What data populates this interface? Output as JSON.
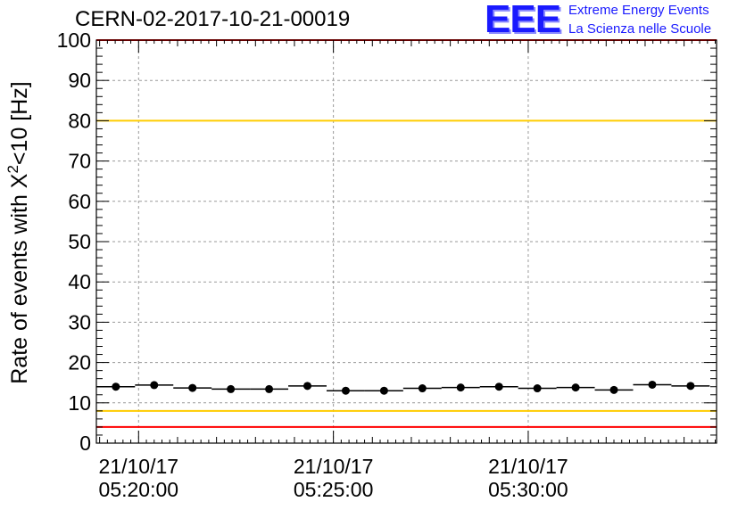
{
  "header": {
    "title": "CERN-02-2017-10-21-00019",
    "logo_mark": "EEE",
    "logo_line1": "Extreme Energy Events",
    "logo_line2": "La Scienza nelle Scuole"
  },
  "colors": {
    "data": "#000000",
    "limit_red": "#ff0000",
    "limit_yellow": "#ffcc00",
    "logo": "#1a1aff"
  },
  "chart_data": {
    "type": "scatter",
    "title": "CERN-02-2017-10-21-00019",
    "ylabel": "Rate of events with X",
    "ylabel_sup": "2",
    "ylabel_tail": "<10 [Hz]",
    "ylim": [
      0,
      100
    ],
    "yticks": [
      0,
      10,
      20,
      30,
      40,
      50,
      60,
      70,
      80,
      90,
      100
    ],
    "xlim": [
      "05:18:55",
      "05:34:50"
    ],
    "xticks": [
      {
        "time": "05:20:00",
        "date": "21/10/17",
        "label": "05:20:00"
      },
      {
        "time": "05:25:00",
        "date": "21/10/17",
        "label": "05:25:00"
      },
      {
        "time": "05:30:00",
        "date": "21/10/17",
        "label": "05:30:00"
      }
    ],
    "grid": true,
    "bin_width_s": 59,
    "points": [
      {
        "t": "05:19:25",
        "rate": 14.0
      },
      {
        "t": "05:20:24",
        "rate": 14.4
      },
      {
        "t": "05:21:23",
        "rate": 13.7
      },
      {
        "t": "05:22:22",
        "rate": 13.4
      },
      {
        "t": "05:23:21",
        "rate": 13.4
      },
      {
        "t": "05:24:20",
        "rate": 14.2
      },
      {
        "t": "05:25:19",
        "rate": 13.0
      },
      {
        "t": "05:26:18",
        "rate": 13.0
      },
      {
        "t": "05:27:17",
        "rate": 13.6
      },
      {
        "t": "05:28:16",
        "rate": 13.8
      },
      {
        "t": "05:29:15",
        "rate": 14.0
      },
      {
        "t": "05:30:14",
        "rate": 13.6
      },
      {
        "t": "05:31:13",
        "rate": 13.8
      },
      {
        "t": "05:32:12",
        "rate": 13.2
      },
      {
        "t": "05:33:11",
        "rate": 14.5
      },
      {
        "t": "05:34:10",
        "rate": 14.2
      }
    ],
    "reference_lines": [
      {
        "y": 100,
        "color": "red"
      },
      {
        "y": 80,
        "color": "yellow"
      },
      {
        "y": 8,
        "color": "yellow"
      },
      {
        "y": 4,
        "color": "red"
      }
    ]
  }
}
